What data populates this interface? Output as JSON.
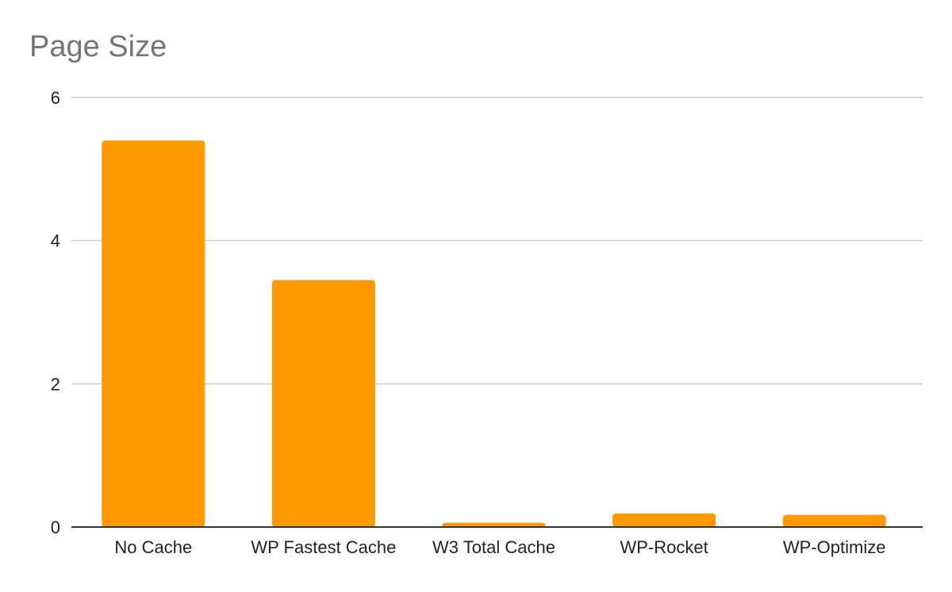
{
  "chart_data": {
    "type": "bar",
    "title": "Page Size",
    "xlabel": "",
    "ylabel": "",
    "categories": [
      "No Cache",
      "WP Fastest Cache",
      "W3 Total Cache",
      "WP-Rocket",
      "WP-Optimize"
    ],
    "values": [
      5.4,
      3.45,
      0.06,
      0.19,
      0.17
    ],
    "ylim": [
      0,
      6
    ],
    "yticks": [
      "0",
      "2",
      "4",
      "6"
    ],
    "grid": true,
    "legend": "none",
    "bar_color": "#ff9900",
    "grid_color": "#cccccc",
    "axis_color": "#333333"
  }
}
